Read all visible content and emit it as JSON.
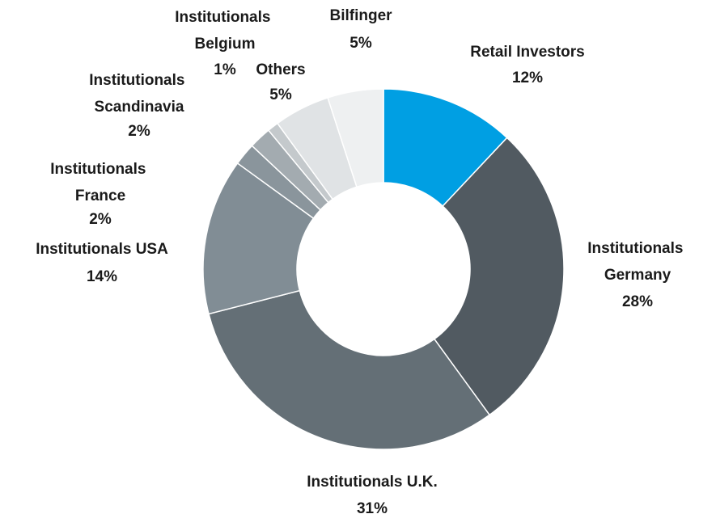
{
  "chart_data": {
    "type": "donut",
    "categories": [
      "Retail Investors",
      "Institutionals Germany",
      "Institutionals U.K.",
      "Institutionals USA",
      "Institutionals France",
      "Institutionals Scandinavia",
      "Institutionals Belgium",
      "Others",
      "Bilfinger"
    ],
    "values": [
      12,
      28,
      31,
      14,
      2,
      2,
      1,
      5,
      5
    ],
    "value_labels": [
      "12%",
      "28%",
      "31%",
      "14%",
      "2%",
      "2%",
      "1%",
      "5%",
      "5%"
    ],
    "colors": [
      "#009fe3",
      "#515a61",
      "#646f76",
      "#818d95",
      "#8a959c",
      "#a3abb0",
      "#c4c9cc",
      "#e0e3e5",
      "#eef0f1"
    ]
  }
}
